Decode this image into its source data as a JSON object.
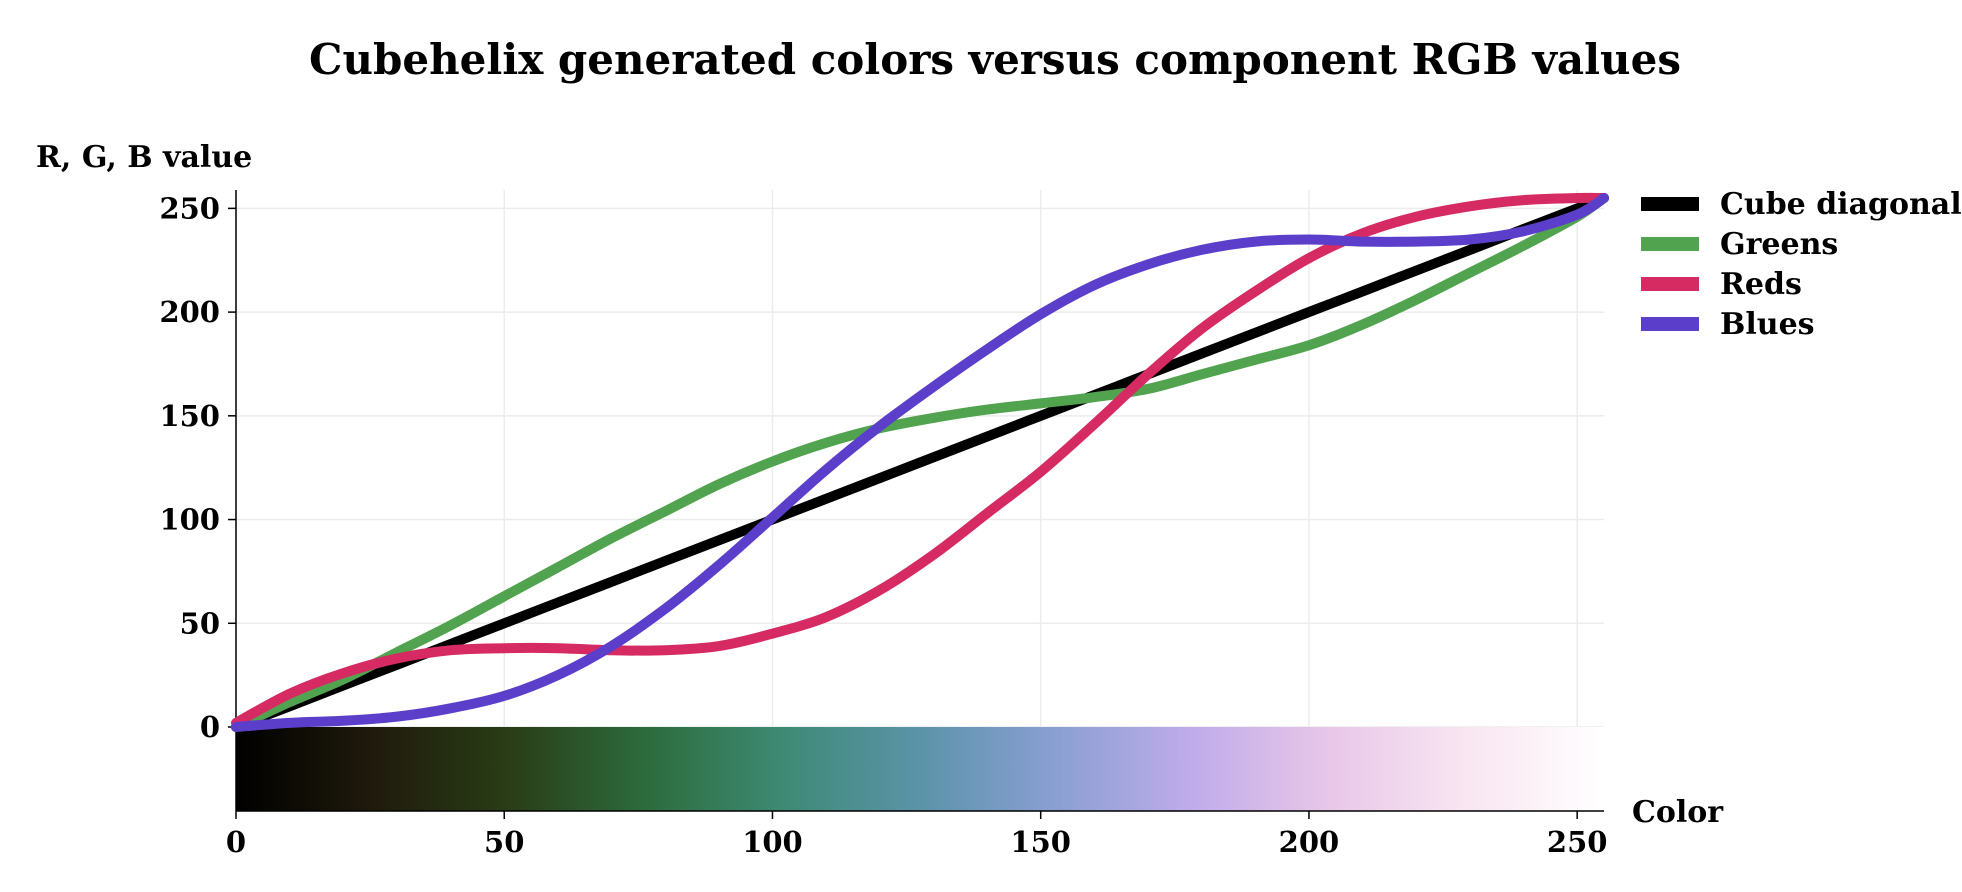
{
  "chart_data": {
    "type": "line",
    "title": "Cubehelix generated colors versus component RGB values",
    "xlabel": "Color",
    "ylabel": "R, G, B value",
    "xlim": [
      0,
      255
    ],
    "ylim": [
      -40,
      255
    ],
    "x_ticks": [
      0,
      50,
      100,
      150,
      200,
      250
    ],
    "y_ticks": [
      0,
      50,
      100,
      150,
      200,
      250
    ],
    "grid": true,
    "legend_position": "top-right",
    "x": [
      0,
      10,
      20,
      30,
      40,
      50,
      60,
      70,
      80,
      90,
      100,
      110,
      120,
      130,
      140,
      150,
      160,
      170,
      180,
      190,
      200,
      210,
      220,
      230,
      240,
      250,
      255
    ],
    "series": [
      {
        "name": "Cube diagonal",
        "color": "#000000",
        "values": [
          0,
          10,
          20,
          30,
          40,
          50,
          60,
          70,
          80,
          90,
          100,
          110,
          120,
          130,
          140,
          150,
          160,
          170,
          180,
          190,
          200,
          210,
          220,
          230,
          240,
          250,
          255
        ]
      },
      {
        "name": "Greens",
        "color": "#52a34f",
        "values": [
          0,
          12,
          23,
          36,
          49,
          63,
          77,
          91,
          104,
          117,
          128,
          137,
          144,
          149,
          153,
          156,
          159,
          163,
          170,
          177,
          184,
          194,
          206,
          219,
          232,
          246,
          255
        ]
      },
      {
        "name": "Reds",
        "color": "#d62a63",
        "values": [
          2,
          16,
          26,
          33,
          37,
          38,
          38,
          37,
          37,
          39,
          45,
          53,
          66,
          83,
          103,
          123,
          146,
          170,
          192,
          210,
          226,
          238,
          246,
          251,
          254,
          255,
          255
        ]
      },
      {
        "name": "Blues",
        "color": "#5b3fcb",
        "values": [
          0,
          2,
          3,
          5,
          9,
          15,
          25,
          39,
          57,
          78,
          101,
          124,
          145,
          164,
          182,
          199,
          213,
          223,
          230,
          234,
          235,
          234,
          234,
          235,
          239,
          247,
          255
        ]
      }
    ],
    "colorbar_stops": [
      "#000000",
      "#1f1a0c",
      "#2a3d17",
      "#2d6b3d",
      "#3e8a74",
      "#5b93a8",
      "#8b9fd3",
      "#c0acea",
      "#e8c7e8",
      "#f8e6f1",
      "#ffffff"
    ]
  }
}
